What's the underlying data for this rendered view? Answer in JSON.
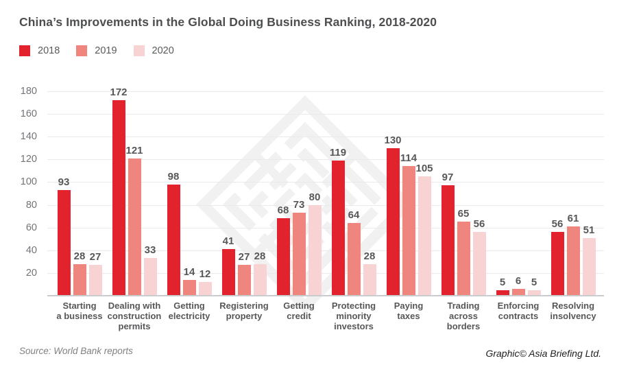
{
  "page": {
    "title": "China’s Improvements in the Global Doing Business Ranking, 2018-2020"
  },
  "chart_data": {
    "type": "bar",
    "title": "China’s Improvements in the Global Doing Business Ranking, 2018-2020",
    "categories": [
      "Starting a business",
      "Dealing with construction permits",
      "Getting electricity",
      "Registering property",
      "Getting credit",
      "Protecting minority investors",
      "Paying taxes",
      "Trading across borders",
      "Enforcing contracts",
      "Resolving insolvency"
    ],
    "category_label_lines": [
      [
        "Starting",
        "a business"
      ],
      [
        "Dealing with",
        "construction",
        "permits"
      ],
      [
        "Getting",
        "electricity"
      ],
      [
        "Registering",
        "property"
      ],
      [
        "Getting",
        "credit"
      ],
      [
        "Protecting",
        "minority",
        "investors"
      ],
      [
        "Paying",
        "taxes"
      ],
      [
        "Trading",
        "across",
        "borders"
      ],
      [
        "Enforcing",
        "contracts"
      ],
      [
        "Resolving",
        "insolvency"
      ]
    ],
    "series": [
      {
        "name": "2018",
        "color": "#e2232d",
        "values": [
          93,
          172,
          98,
          41,
          68,
          119,
          130,
          97,
          5,
          56
        ]
      },
      {
        "name": "2019",
        "color": "#ef857c",
        "values": [
          28,
          121,
          14,
          27,
          73,
          64,
          114,
          65,
          6,
          61
        ]
      },
      {
        "name": "2020",
        "color": "#f8d3d4",
        "values": [
          27,
          33,
          12,
          28,
          80,
          28,
          105,
          56,
          5,
          51
        ]
      }
    ],
    "xlabel": "",
    "ylabel": "",
    "ylim": [
      0,
      180
    ],
    "yticks": [
      20,
      40,
      60,
      80,
      100,
      120,
      140,
      160,
      180
    ],
    "grid": true,
    "legend_position": "top-left"
  },
  "footer": {
    "source": "Source: World Bank reports",
    "credit": "Graphic© Asia Briefing Ltd."
  },
  "colors": {
    "grid": "#e9eaeb",
    "baseline": "#c9cbcd",
    "title": "#4d4e50",
    "value_label": "#565759",
    "axis_label": "#717376",
    "category_label": "#565759",
    "source_text": "#7e8083",
    "credit_text": "#1e1e1e",
    "watermark": "#f1f1f1"
  }
}
